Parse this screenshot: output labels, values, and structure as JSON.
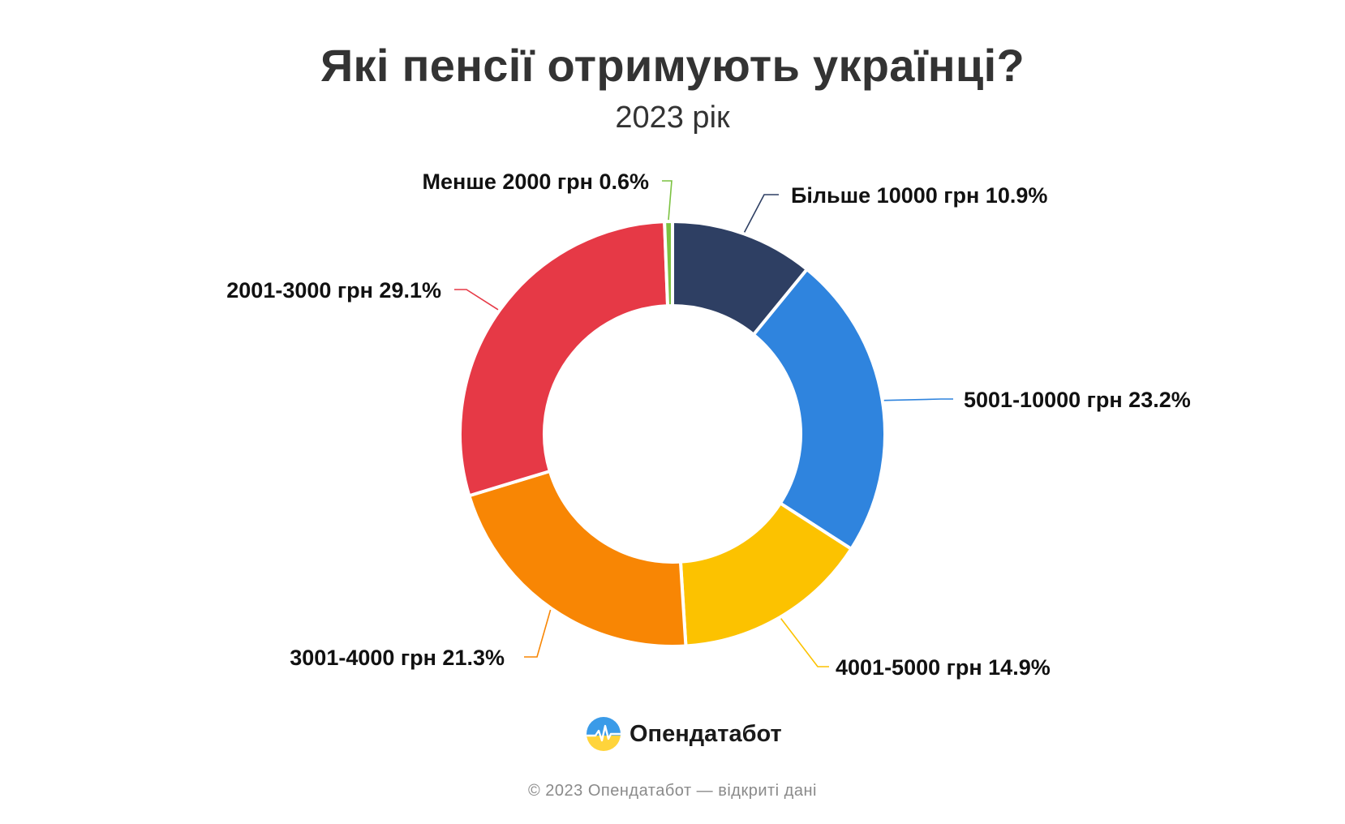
{
  "header": {
    "title": "Які пенсії отримують українці?",
    "subtitle": "2023 рік"
  },
  "chart_data": {
    "type": "pie",
    "donut": true,
    "title": "Які пенсії отримують українці?",
    "subtitle": "2023 рік",
    "unit": "%",
    "slices": [
      {
        "label": "Більше 10000 грн 10.9%",
        "category": "Більше 10000 грн",
        "value": 10.9,
        "color": "#2e3f63"
      },
      {
        "label": "5001-10000 грн 23.2%",
        "category": "5001-10000 грн",
        "value": 23.2,
        "color": "#2f84de"
      },
      {
        "label": "4001-5000 грн 14.9%",
        "category": "4001-5000 грн",
        "value": 14.9,
        "color": "#fcc200"
      },
      {
        "label": "3001-4000 грн 21.3%",
        "category": "3001-4000 грн",
        "value": 21.3,
        "color": "#f88604"
      },
      {
        "label": "2001-3000 грн 29.1%",
        "category": "2001-3000 грн",
        "value": 29.1,
        "color": "#e63946"
      },
      {
        "label": "Менше 2000 грн 0.6%",
        "category": "Менше 2000 грн",
        "value": 0.6,
        "color": "#7cc242"
      }
    ]
  },
  "brand": {
    "name": "Опендатабот",
    "icon": "opendatabot-logo-icon"
  },
  "footer": {
    "text": "© 2023 Опендатабот — відкриті дані"
  }
}
